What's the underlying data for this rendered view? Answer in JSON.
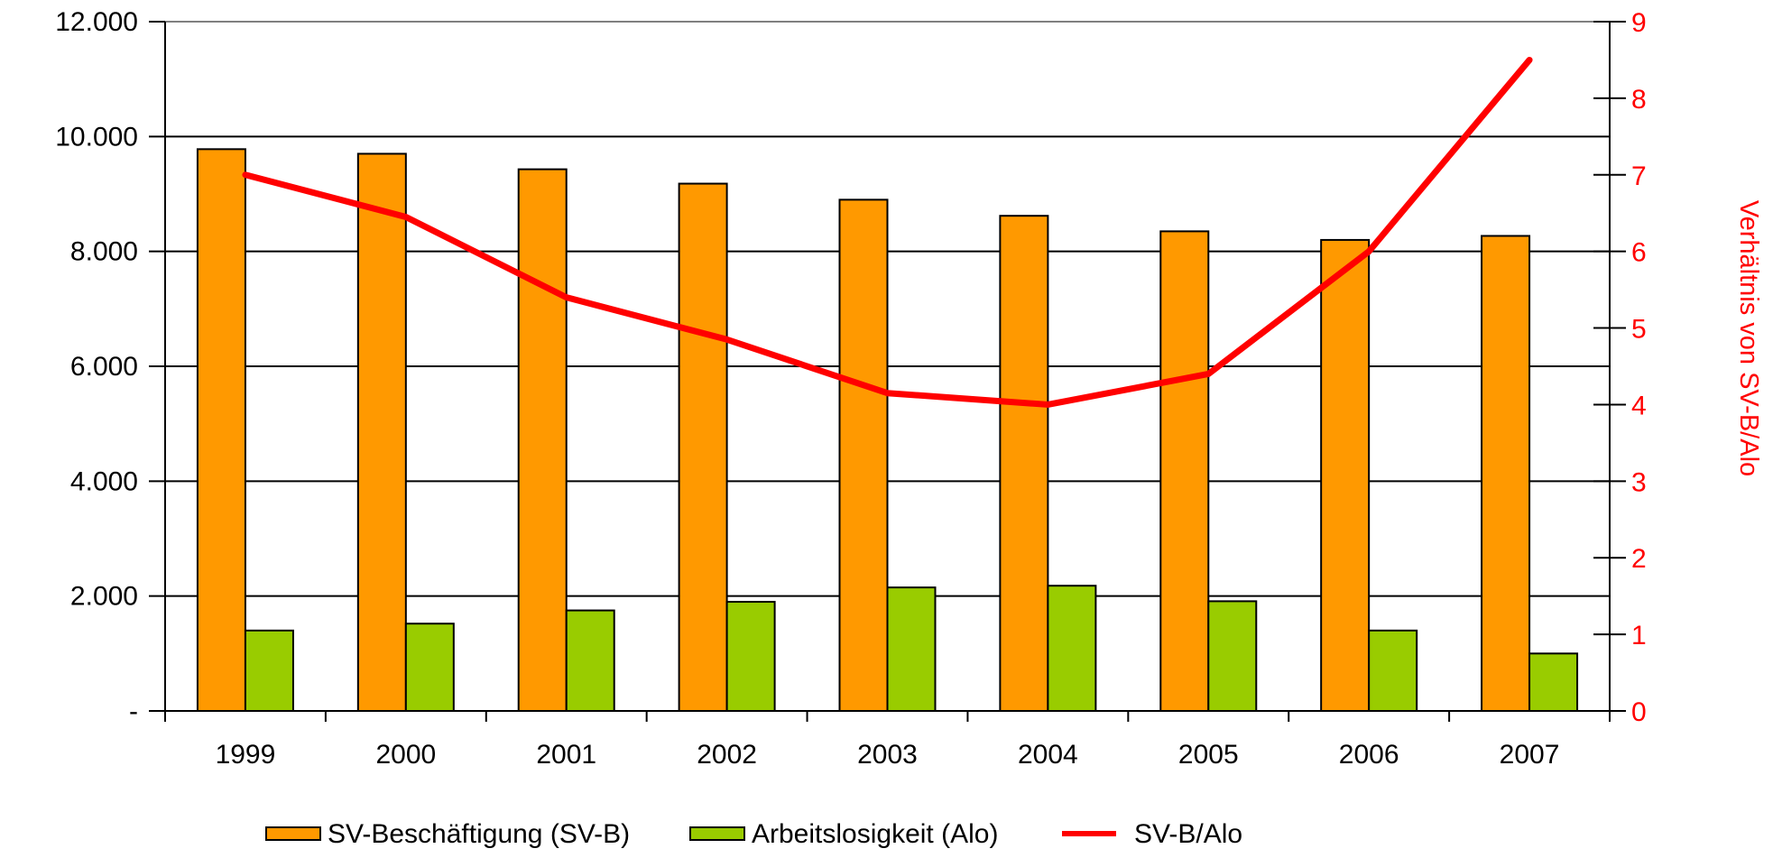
{
  "chart_data": {
    "type": "bar",
    "categories": [
      "1999",
      "2000",
      "2001",
      "2002",
      "2003",
      "2004",
      "2005",
      "2006",
      "2007"
    ],
    "series": [
      {
        "name": "SV-Beschäftigung (SV-B)",
        "kind": "bar",
        "axis": "left",
        "color": "#FF9900",
        "values": [
          9780,
          9700,
          9430,
          9180,
          8900,
          8620,
          8350,
          8200,
          8270
        ]
      },
      {
        "name": "Arbeitslosigkeit (Alo)",
        "kind": "bar",
        "axis": "left",
        "color": "#99CC00",
        "values": [
          1400,
          1520,
          1750,
          1900,
          2150,
          2180,
          1910,
          1400,
          1000
        ]
      },
      {
        "name": "SV-B/Alo",
        "kind": "line",
        "axis": "right",
        "color": "#FF0000",
        "values": [
          7.0,
          6.45,
          5.4,
          4.85,
          4.15,
          4.0,
          4.4,
          6.0,
          8.5
        ]
      }
    ],
    "y_left": {
      "ylim": [
        0,
        12000
      ],
      "ticks": [
        0,
        2000,
        4000,
        6000,
        8000,
        10000,
        12000
      ],
      "tick_labels": [
        "-",
        "2.000",
        "4.000",
        "6.000",
        "8.000",
        "10.000",
        "12.000"
      ]
    },
    "y_right": {
      "ylabel": "Verhältnis von SV-B/Alo",
      "ylim": [
        0,
        9
      ],
      "ticks": [
        0,
        1,
        2,
        3,
        4,
        5,
        6,
        7,
        8,
        9
      ],
      "tick_labels": [
        "0",
        "1",
        "2",
        "3",
        "4",
        "5",
        "6",
        "7",
        "8",
        "9"
      ],
      "color": "#FF0000"
    },
    "grid": true,
    "legend_position": "bottom"
  }
}
